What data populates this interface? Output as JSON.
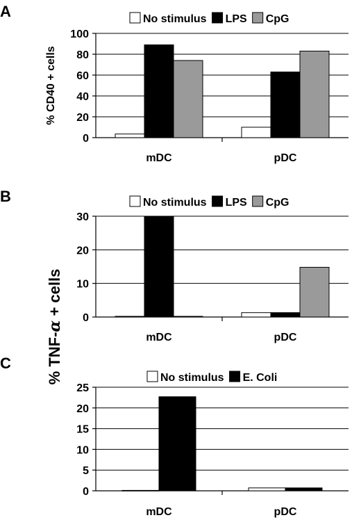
{
  "colors": {
    "No stimulus": "#ffffff",
    "LPS": "#000000",
    "CpG": "#9a9a9a",
    "E. Coli": "#000000"
  },
  "shared_ylabel": {
    "prefix": "% TNF-",
    "greek": "α",
    "suffix": " + cells"
  },
  "chart_data": [
    {
      "panel": "A",
      "type": "bar",
      "categories": [
        "mDC",
        "pDC"
      ],
      "ylabel": "% CD40 + cells",
      "ylim": [
        0,
        100
      ],
      "yticks": [
        0,
        20,
        40,
        60,
        80,
        100
      ],
      "grid": true,
      "legend_position": "top",
      "series": [
        {
          "name": "No stimulus",
          "values": [
            3.5,
            10
          ]
        },
        {
          "name": "LPS",
          "values": [
            89,
            63
          ]
        },
        {
          "name": "CpG",
          "values": [
            74,
            83
          ]
        }
      ]
    },
    {
      "panel": "B",
      "type": "bar",
      "categories": [
        "mDC",
        "pDC"
      ],
      "ylabel": "",
      "ylim": [
        0,
        30
      ],
      "yticks": [
        0,
        10,
        20,
        30
      ],
      "grid": true,
      "legend_position": "top",
      "series": [
        {
          "name": "No stimulus",
          "values": [
            0.2,
            1.3
          ]
        },
        {
          "name": "LPS",
          "values": [
            30,
            1.3
          ]
        },
        {
          "name": "CpG",
          "values": [
            0.2,
            14.8
          ]
        }
      ]
    },
    {
      "panel": "C",
      "type": "bar",
      "categories": [
        "mDC",
        "pDC"
      ],
      "ylabel": "",
      "ylim": [
        0,
        25
      ],
      "yticks": [
        0,
        5,
        10,
        15,
        20,
        25
      ],
      "grid": true,
      "legend_position": "top",
      "series": [
        {
          "name": "No stimulus",
          "values": [
            0.1,
            0.7
          ]
        },
        {
          "name": "E. Coli",
          "values": [
            22.7,
            0.7
          ]
        }
      ]
    }
  ]
}
